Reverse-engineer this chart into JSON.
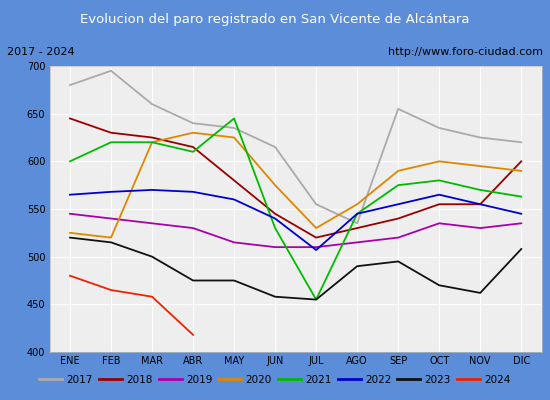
{
  "title": "Evolucion del paro registrado en San Vicente de Alcántara",
  "subtitle_left": "2017 - 2024",
  "subtitle_right": "http://www.foro-ciudad.com",
  "title_bg": "#5b8dd9",
  "title_color": "white",
  "ylim": [
    400,
    700
  ],
  "yticks": [
    400,
    450,
    500,
    550,
    600,
    650,
    700
  ],
  "months": [
    "ENE",
    "FEB",
    "MAR",
    "ABR",
    "MAY",
    "JUN",
    "JUL",
    "AGO",
    "SEP",
    "OCT",
    "NOV",
    "DIC"
  ],
  "series": {
    "2017": {
      "color": "#aaaaaa",
      "values": [
        680,
        695,
        660,
        640,
        635,
        615,
        555,
        535,
        655,
        635,
        625,
        620
      ]
    },
    "2018": {
      "color": "#990000",
      "values": [
        645,
        630,
        625,
        615,
        580,
        545,
        520,
        530,
        540,
        555,
        555,
        600
      ]
    },
    "2019": {
      "color": "#aa00aa",
      "values": [
        545,
        540,
        535,
        530,
        515,
        510,
        510,
        515,
        520,
        535,
        530,
        535
      ]
    },
    "2020": {
      "color": "#dd8800",
      "values": [
        525,
        520,
        620,
        630,
        625,
        575,
        530,
        555,
        590,
        600,
        595,
        590
      ]
    },
    "2021": {
      "color": "#00bb00",
      "values": [
        600,
        620,
        620,
        610,
        645,
        530,
        455,
        545,
        575,
        580,
        570,
        563
      ]
    },
    "2022": {
      "color": "#0000cc",
      "values": [
        565,
        568,
        570,
        568,
        560,
        540,
        507,
        545,
        555,
        565,
        555,
        545
      ]
    },
    "2023": {
      "color": "#111111",
      "values": [
        520,
        515,
        500,
        475,
        475,
        458,
        455,
        490,
        495,
        470,
        462,
        508
      ]
    },
    "2024": {
      "color": "#ee2200",
      "values": [
        480,
        465,
        458,
        418,
        null,
        null,
        null,
        null,
        null,
        null,
        null,
        null
      ]
    }
  }
}
